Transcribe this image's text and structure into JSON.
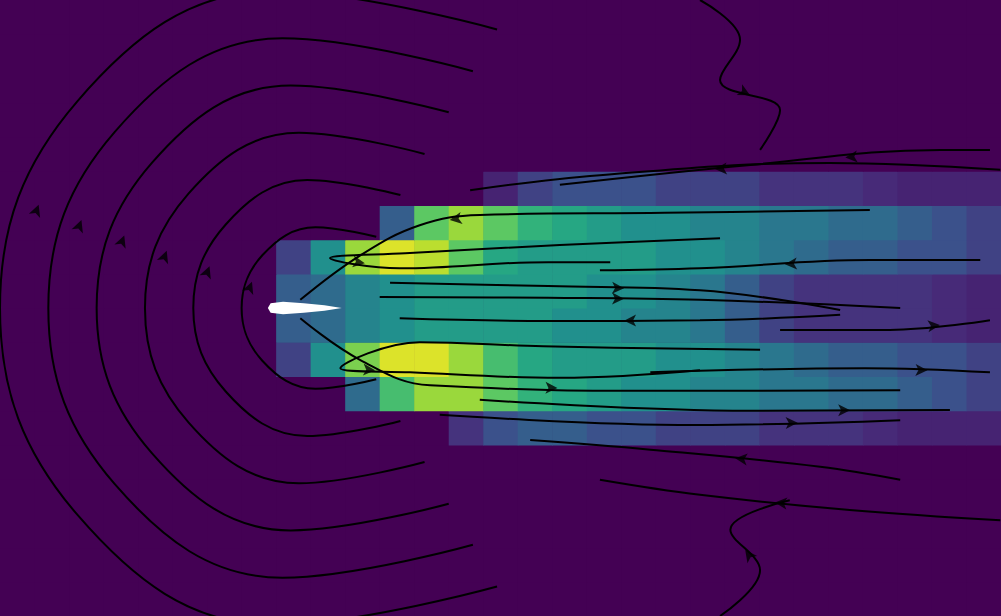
{
  "chart_data": {
    "type": "heatmap",
    "tick_labels": false,
    "xlim": [
      -4,
      10.5
    ],
    "ylim": [
      -4.5,
      4.5
    ],
    "heatmap": {
      "x": [
        -3.75,
        -3.25,
        -2.75,
        -2.25,
        -1.75,
        -1.25,
        -0.75,
        -0.25,
        0.25,
        0.75,
        1.25,
        1.75,
        2.25,
        2.75,
        3.25,
        3.75,
        4.25,
        4.75,
        5.25,
        5.75,
        6.25,
        6.75,
        7.25,
        7.75,
        8.25,
        8.75,
        9.25,
        9.75,
        10.25
      ],
      "y": [
        -4.25,
        -3.75,
        -3.25,
        -2.75,
        -2.25,
        -1.75,
        -1.25,
        -0.75,
        -0.25,
        0.25,
        0.75,
        1.25,
        1.75,
        2.25,
        2.75,
        3.25,
        3.75,
        4.25
      ],
      "color_range": [
        0,
        1
      ],
      "colors": [
        "#440154",
        "#472c7a",
        "#3b518b",
        "#2c718e",
        "#21908d",
        "#27ad81",
        "#5cc863",
        "#aadc32",
        "#fde725"
      ],
      "values": [
        [
          0,
          0,
          0,
          0,
          0,
          0,
          0,
          0,
          0,
          0,
          0,
          0,
          0,
          0,
          0,
          0,
          0,
          0,
          0,
          0,
          0,
          0,
          0,
          0,
          0,
          0,
          0,
          0,
          0
        ],
        [
          0,
          0,
          0,
          0,
          0,
          0,
          0,
          0,
          0,
          0,
          0,
          0,
          0,
          0,
          0,
          0,
          0,
          0,
          0,
          0,
          0,
          0,
          0,
          0,
          0,
          0,
          0,
          0,
          0
        ],
        [
          0,
          0,
          0,
          0,
          0,
          0,
          0,
          0,
          0,
          0,
          0,
          0,
          0,
          0,
          0,
          0,
          0,
          0,
          0,
          0,
          0,
          0,
          0,
          0,
          0,
          0,
          0,
          0,
          0
        ],
        [
          0,
          0,
          0,
          0,
          0,
          0,
          0,
          0,
          0,
          0,
          0,
          0,
          0,
          0,
          0,
          0,
          0,
          0,
          0,
          0,
          0,
          0,
          0,
          0,
          0,
          0,
          0,
          0,
          0
        ],
        [
          0,
          0,
          0,
          0,
          0,
          0,
          0,
          0,
          0,
          0,
          0,
          0,
          0,
          0,
          0,
          0,
          0,
          0,
          0,
          0,
          0,
          0,
          0,
          0,
          0,
          0,
          0,
          0,
          0
        ],
        [
          0,
          0,
          0,
          0,
          0,
          0,
          0,
          0,
          0,
          0,
          0,
          0,
          0,
          0.15,
          0.25,
          0.3,
          0.3,
          0.25,
          0.25,
          0.2,
          0.2,
          0.2,
          0.15,
          0.15,
          0.15,
          0.12,
          0.1,
          0.1,
          0.1
        ],
        [
          0,
          0,
          0,
          0,
          0,
          0,
          0,
          0,
          0,
          0,
          0.35,
          0.7,
          0.85,
          0.85,
          0.75,
          0.65,
          0.6,
          0.55,
          0.5,
          0.5,
          0.45,
          0.45,
          0.4,
          0.4,
          0.35,
          0.35,
          0.3,
          0.25,
          0.2
        ],
        [
          0,
          0,
          0,
          0,
          0,
          0,
          0,
          0,
          0.2,
          0.5,
          0.8,
          0.95,
          0.95,
          0.85,
          0.7,
          0.6,
          0.55,
          0.55,
          0.55,
          0.5,
          0.5,
          0.45,
          0.4,
          0.35,
          0.3,
          0.3,
          0.25,
          0.25,
          0.2
        ],
        [
          0,
          0,
          0,
          0,
          0,
          0,
          0,
          0,
          0.3,
          0.35,
          0.45,
          0.5,
          0.55,
          0.55,
          0.55,
          0.55,
          0.5,
          0.5,
          0.45,
          0.45,
          0.4,
          0.3,
          0.2,
          0.15,
          0.15,
          0.15,
          0.15,
          0.12,
          0.1
        ],
        [
          0,
          0,
          0,
          0,
          0,
          0,
          0,
          0,
          0.3,
          0.35,
          0.45,
          0.5,
          0.55,
          0.55,
          0.55,
          0.55,
          0.55,
          0.5,
          0.5,
          0.45,
          0.4,
          0.3,
          0.2,
          0.15,
          0.15,
          0.15,
          0.15,
          0.12,
          0.1
        ],
        [
          0,
          0,
          0,
          0,
          0,
          0,
          0,
          0,
          0.2,
          0.5,
          0.85,
          0.95,
          0.9,
          0.75,
          0.6,
          0.55,
          0.55,
          0.55,
          0.55,
          0.5,
          0.5,
          0.45,
          0.4,
          0.35,
          0.3,
          0.3,
          0.25,
          0.25,
          0.2
        ],
        [
          0,
          0,
          0,
          0,
          0,
          0,
          0,
          0,
          0,
          0,
          0,
          0.3,
          0.75,
          0.85,
          0.75,
          0.65,
          0.6,
          0.55,
          0.5,
          0.5,
          0.45,
          0.45,
          0.4,
          0.4,
          0.35,
          0.35,
          0.3,
          0.25,
          0.2
        ],
        [
          0,
          0,
          0,
          0,
          0,
          0,
          0,
          0,
          0,
          0,
          0,
          0,
          0,
          0,
          0.1,
          0.2,
          0.25,
          0.25,
          0.25,
          0.2,
          0.2,
          0.2,
          0.15,
          0.15,
          0.15,
          0.12,
          0.1,
          0.1,
          0.1
        ],
        [
          0,
          0,
          0,
          0,
          0,
          0,
          0,
          0,
          0,
          0,
          0,
          0,
          0,
          0,
          0,
          0,
          0,
          0,
          0,
          0,
          0,
          0,
          0,
          0,
          0,
          0,
          0,
          0,
          0
        ],
        [
          0,
          0,
          0,
          0,
          0,
          0,
          0,
          0,
          0,
          0,
          0,
          0,
          0,
          0,
          0,
          0,
          0,
          0,
          0,
          0,
          0,
          0,
          0,
          0,
          0,
          0,
          0,
          0,
          0
        ],
        [
          0,
          0,
          0,
          0,
          0,
          0,
          0,
          0,
          0,
          0,
          0,
          0,
          0,
          0,
          0,
          0,
          0,
          0,
          0,
          0,
          0,
          0,
          0,
          0,
          0,
          0,
          0,
          0,
          0
        ],
        [
          0,
          0,
          0,
          0,
          0,
          0,
          0,
          0,
          0,
          0,
          0,
          0,
          0,
          0,
          0,
          0,
          0,
          0,
          0,
          0,
          0,
          0,
          0,
          0,
          0,
          0,
          0,
          0,
          0
        ],
        [
          0,
          0,
          0,
          0,
          0,
          0,
          0,
          0,
          0,
          0,
          0,
          0,
          0,
          0,
          0,
          0,
          0,
          0,
          0,
          0,
          0,
          0,
          0,
          0,
          0,
          0,
          0,
          0,
          0
        ]
      ]
    },
    "streamlines": {
      "color": "#000000",
      "marker": "arrow",
      "lines": [
        [
          [
            1.45,
            -1.04
          ],
          [
            0.57,
            -1.18
          ],
          [
            -0.2,
            -0.77
          ],
          [
            -0.5,
            0
          ],
          [
            -0.2,
            0.77
          ],
          [
            0.57,
            1.18
          ],
          [
            1.45,
            1.04
          ]
        ],
        [
          [
            1.8,
            -1.65
          ],
          [
            0.45,
            -1.87
          ],
          [
            -0.73,
            -1.22
          ],
          [
            -1.2,
            0
          ],
          [
            -0.73,
            1.22
          ],
          [
            0.45,
            1.87
          ],
          [
            1.8,
            1.65
          ]
        ],
        [
          [
            2.15,
            -2.25
          ],
          [
            0.33,
            -2.56
          ],
          [
            -1.27,
            -1.67
          ],
          [
            -1.9,
            0
          ],
          [
            -1.27,
            1.67
          ],
          [
            0.33,
            2.56
          ],
          [
            2.15,
            2.25
          ]
        ],
        [
          [
            2.5,
            -2.86
          ],
          [
            0.21,
            -3.25
          ],
          [
            -1.8,
            -2.12
          ],
          [
            -2.6,
            0
          ],
          [
            -1.8,
            2.12
          ],
          [
            0.21,
            3.25
          ],
          [
            2.5,
            2.86
          ]
        ],
        [
          [
            2.85,
            -3.46
          ],
          [
            0.09,
            -3.94
          ],
          [
            -2.34,
            -2.57
          ],
          [
            -3.3,
            0
          ],
          [
            -2.34,
            2.57
          ],
          [
            0.09,
            3.94
          ],
          [
            2.85,
            3.46
          ]
        ],
        [
          [
            3.2,
            -4.07
          ],
          [
            -0.04,
            -4.63
          ],
          [
            -2.88,
            -3.02
          ],
          [
            -4.0,
            0
          ],
          [
            -2.88,
            3.02
          ],
          [
            -0.04,
            4.63
          ],
          [
            3.2,
            4.07
          ]
        ],
        [
          [
            8.6,
            1.43
          ],
          [
            5.63,
            1.39
          ],
          [
            2.95,
            1.36
          ],
          [
            2.08,
            1.21
          ],
          [
            1.22,
            0.77
          ],
          [
            0.35,
            0.12
          ]
        ],
        [
          [
            6.43,
            1.02
          ],
          [
            4.11,
            0.92
          ],
          [
            1.87,
            0.8
          ],
          [
            0.78,
            0.73
          ],
          [
            1.79,
            0.58
          ],
          [
            3.94,
            0.67
          ],
          [
            4.84,
            0.67
          ]
        ],
        [
          [
            1.65,
            0.37
          ],
          [
            3.94,
            0.32
          ],
          [
            6.14,
            0.26
          ],
          [
            8.17,
            -0.03
          ]
        ],
        [
          [
            1.5,
            0.16
          ],
          [
            3.94,
            0.15
          ],
          [
            6.14,
            0.12
          ],
          [
            9.04,
            0.0
          ]
        ],
        [
          [
            8.17,
            -0.1
          ],
          [
            6.14,
            -0.18
          ],
          [
            3.94,
            -0.19
          ],
          [
            1.79,
            -0.15
          ]
        ],
        [
          [
            7.01,
            -0.61
          ],
          [
            3.87,
            -0.56
          ],
          [
            2.08,
            -0.5
          ],
          [
            0.93,
            -0.88
          ],
          [
            1.94,
            -0.94
          ],
          [
            4.11,
            -1.02
          ],
          [
            6.14,
            -0.91
          ]
        ],
        [
          [
            0.35,
            -0.15
          ],
          [
            1.22,
            -0.76
          ],
          [
            2.23,
            -1.13
          ],
          [
            5.92,
            -1.21
          ],
          [
            9.04,
            -1.2
          ]
        ],
        [
          [
            2.95,
            -1.34
          ],
          [
            6.87,
            -1.5
          ],
          [
            9.76,
            -1.49
          ]
        ],
        [
          [
            2.37,
            -1.56
          ],
          [
            6.07,
            -1.71
          ],
          [
            9.04,
            -1.64
          ]
        ],
        [
          [
            10.49,
            2.02
          ],
          [
            8.02,
            2.12
          ],
          [
            4.69,
            1.94
          ],
          [
            2.81,
            1.72
          ]
        ],
        [
          [
            10.34,
            2.31
          ],
          [
            9.62,
            2.31
          ],
          [
            6.87,
            2.09
          ],
          [
            4.11,
            1.8
          ]
        ],
        [
          [
            10.2,
            0.7
          ],
          [
            8.6,
            0.7
          ],
          [
            6.14,
            0.58
          ],
          [
            4.69,
            0.55
          ]
        ],
        [
          [
            7.3,
            -0.32
          ],
          [
            8.89,
            -0.32
          ],
          [
            10.34,
            -0.18
          ]
        ],
        [
          [
            5.42,
            -0.94
          ],
          [
            8.53,
            -0.88
          ],
          [
            10.34,
            -0.94
          ]
        ],
        [
          [
            9.04,
            -2.51
          ],
          [
            7.88,
            -2.32
          ],
          [
            5.42,
            -2.07
          ],
          [
            3.68,
            -1.93
          ]
        ],
        [
          [
            10.49,
            -3.1
          ],
          [
            8.31,
            -2.95
          ],
          [
            6.14,
            -2.73
          ],
          [
            4.69,
            -2.51
          ]
        ],
        [
          [
            6.14,
            4.5
          ],
          [
            6.72,
            3.92
          ],
          [
            6.43,
            3.33
          ],
          [
            7.3,
            2.89
          ],
          [
            7.01,
            2.31
          ]
        ],
        [
          [
            6.43,
            -4.5
          ],
          [
            7.01,
            -3.83
          ],
          [
            6.58,
            -3.24
          ],
          [
            7.44,
            -2.81
          ]
        ]
      ]
    },
    "airfoil": {
      "color": "#ffffff",
      "points": [
        [
          -0.12,
          0
        ],
        [
          -0.08,
          0.07
        ],
        [
          0.1,
          0.09
        ],
        [
          0.4,
          0.07
        ],
        [
          0.7,
          0.04
        ],
        [
          0.95,
          0
        ],
        [
          0.7,
          -0.04
        ],
        [
          0.4,
          -0.07
        ],
        [
          0.1,
          -0.09
        ],
        [
          -0.08,
          -0.07
        ]
      ]
    }
  }
}
